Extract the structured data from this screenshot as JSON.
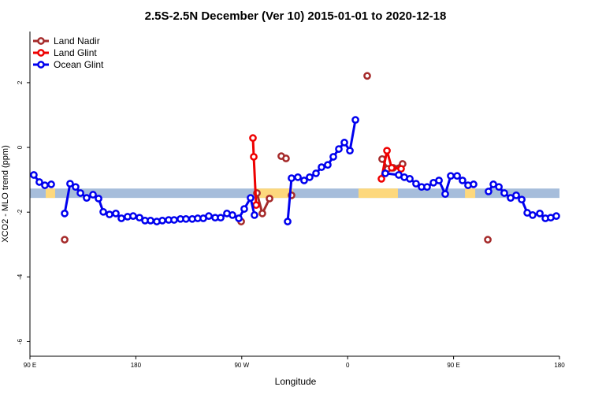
{
  "chart_data": {
    "type": "line",
    "title": "2.5S-2.5N December (Ver 10)   2015-01-01 to 2020-12-18",
    "x_label": "Longitude",
    "y_label": "XCO2 - MLO trend (ppm)",
    "xlim": [
      -270,
      180
    ],
    "ylim": [
      -6.45,
      3.58
    ],
    "xticks": [
      {
        "value": -270,
        "label": "90 E"
      },
      {
        "value": -180,
        "label": "180"
      },
      {
        "value": -90,
        "label": "90 W"
      },
      0,
      {
        "value": 90,
        "label": "90 E"
      },
      180
    ],
    "yticks": [
      2,
      0,
      -2,
      -4,
      -6
    ],
    "legend": "top-left",
    "band": {
      "ylim": [
        -1.56,
        -1.27
      ],
      "color": "#a6bddb"
    },
    "land_spans": [
      [
        -256.6,
        -248.6
      ],
      [
        -79.1,
        -46.3
      ],
      [
        9.2,
        42.7
      ],
      [
        99.7,
        108.4
      ]
    ],
    "land_color": "#fdd87d",
    "series": [
      {
        "name": "Land Nadir",
        "color": "#a52a2a",
        "x": [
          -240.5,
          null,
          -90.5,
          null,
          -77.1,
          -72.5,
          -66.4,
          null,
          -56.4,
          -52.4,
          null,
          -47.7,
          null,
          16.6,
          null,
          29.3,
          34.0,
          38.7,
          46.7,
          null,
          119.1
        ],
        "values": [
          -2.85,
          null,
          -2.29,
          null,
          -1.41,
          -2.04,
          -1.58,
          null,
          -0.27,
          -0.34,
          null,
          -1.48,
          null,
          2.21,
          null,
          -0.36,
          -0.66,
          -0.63,
          -0.51,
          null,
          -2.85
        ]
      },
      {
        "name": "Land Glint",
        "color": "#ee0000",
        "x": [
          -80.5,
          -79.8,
          -77.8,
          null,
          28.7,
          33.4,
          37.4,
          45.4
        ],
        "values": [
          0.29,
          -0.29,
          -1.78,
          null,
          -0.97,
          -0.1,
          -0.63,
          -0.66
        ]
      },
      {
        "name": "Ocean Glint",
        "color": "#0000ee",
        "x": [
          -266.7,
          -262.0,
          -257.3,
          -251.9,
          null,
          -240.5,
          -235.9,
          -231.2,
          -227.1,
          -221.8,
          -216.4,
          -211.7,
          -207.7,
          -202.4,
          -197.0,
          -192.3,
          -187.0,
          -182.3,
          -176.9,
          -172.2,
          -167.5,
          -162.2,
          -157.5,
          -152.1,
          -147.5,
          -142.1,
          -137.4,
          -132.1,
          -127.4,
          -122.7,
          -118.0,
          -112.6,
          -107.9,
          -102.6,
          -97.9,
          -92.5,
          -87.9,
          -82.5,
          -79.2,
          null,
          -51.0,
          -47.7,
          -42.3,
          -37.0,
          -32.3,
          -26.9,
          -22.2,
          -16.9,
          -12.2,
          -7.5,
          -2.8,
          1.9,
          6.6,
          null,
          32.0,
          43.4,
          48.1,
          52.8,
          58.1,
          62.8,
          67.5,
          72.9,
          77.6,
          82.9,
          87.6,
          93.0,
          97.6,
          102.3,
          107.0,
          null,
          119.7,
          123.8,
          128.5,
          133.1,
          138.5,
          143.2,
          147.9,
          152.6,
          157.2,
          163.3,
          168.0,
          172.6,
          177.3
        ],
        "values": [
          -0.85,
          -1.07,
          -1.17,
          -1.14,
          null,
          -2.04,
          -1.12,
          -1.22,
          -1.41,
          -1.56,
          -1.46,
          -1.58,
          -1.99,
          -2.07,
          -2.04,
          -2.19,
          -2.14,
          -2.12,
          -2.17,
          -2.26,
          -2.26,
          -2.29,
          -2.26,
          -2.24,
          -2.24,
          -2.21,
          -2.21,
          -2.21,
          -2.19,
          -2.19,
          -2.12,
          -2.17,
          -2.17,
          -2.04,
          -2.09,
          -2.19,
          -1.9,
          -1.56,
          -2.09,
          null,
          -2.29,
          -0.95,
          -0.92,
          -1.02,
          -0.92,
          -0.8,
          -0.61,
          -0.54,
          -0.29,
          -0.05,
          0.15,
          -0.1,
          0.85,
          null,
          -0.8,
          -0.85,
          -0.92,
          -0.97,
          -1.12,
          -1.22,
          -1.22,
          -1.09,
          -1.02,
          -1.44,
          -0.88,
          -0.88,
          -1.02,
          -1.17,
          -1.14,
          null,
          -1.36,
          -1.14,
          -1.22,
          -1.41,
          -1.56,
          -1.48,
          -1.61,
          -2.02,
          -2.09,
          -2.04,
          -2.19,
          -2.17,
          -2.12
        ]
      }
    ]
  }
}
